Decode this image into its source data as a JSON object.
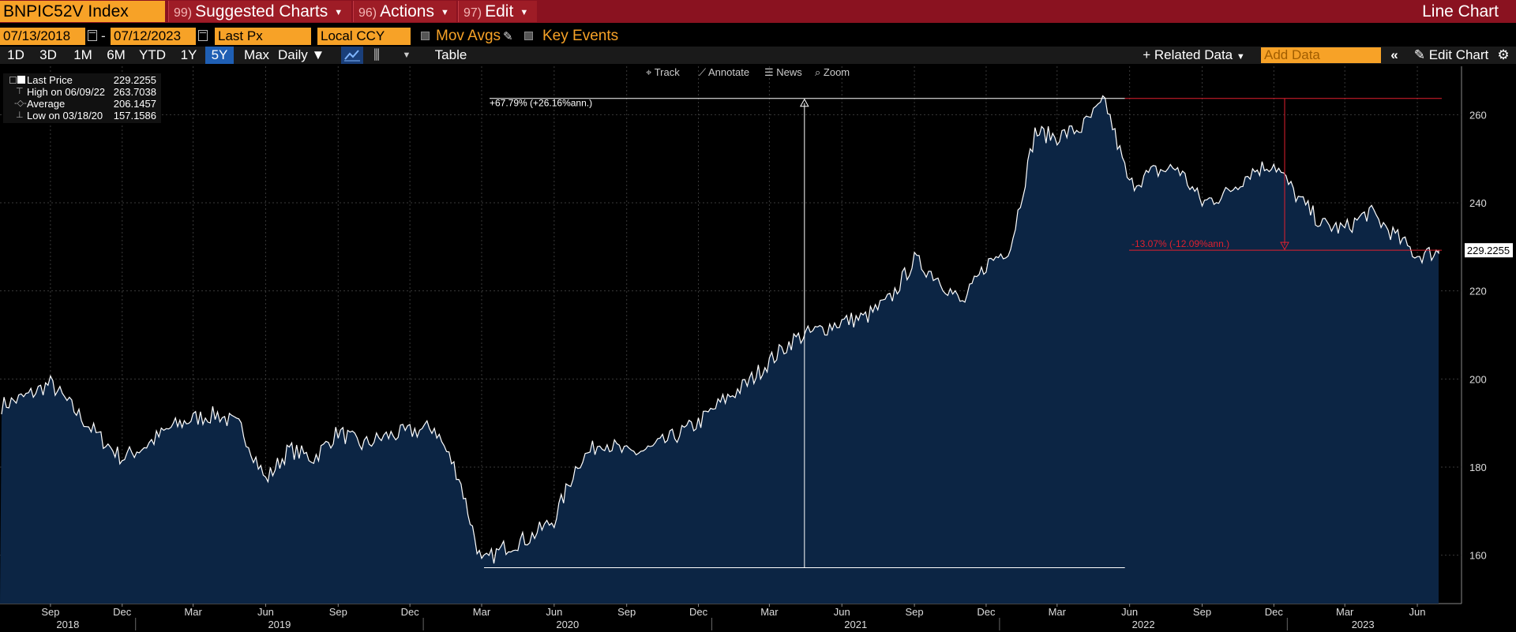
{
  "header": {
    "ticker": "BNPIC52V Index",
    "menus": [
      {
        "num": "99)",
        "label": "Suggested Charts"
      },
      {
        "num": "96)",
        "label": "Actions"
      },
      {
        "num": "97)",
        "label": "Edit"
      }
    ],
    "chart_type_label": "Line Chart"
  },
  "controls": {
    "start_date": "07/13/2018",
    "date_sep": "-",
    "end_date": "07/12/2023",
    "field": "Last Px",
    "currency": "Local CCY",
    "mov_avgs": "Mov Avgs",
    "key_events": "Key Events"
  },
  "toolbar": {
    "periods": [
      "1D",
      "3D",
      "1M",
      "6M",
      "YTD",
      "1Y",
      "5Y",
      "Max"
    ],
    "selected_period": "5Y",
    "frequency": "Daily",
    "table_label": "Table",
    "related_data": "Related Data",
    "add_data_placeholder": "Add Data",
    "edit_chart": "Edit Chart"
  },
  "annotation_tools": [
    "Track",
    "Annotate",
    "News",
    "Zoom"
  ],
  "legend": {
    "items": [
      {
        "label": "Last Price",
        "value": "229.2255"
      },
      {
        "label": "High on 06/09/22",
        "value": "263.7038"
      },
      {
        "label": "Average",
        "value": "206.1457"
      },
      {
        "label": "Low on 03/18/20",
        "value": "157.1586"
      }
    ]
  },
  "chart_data": {
    "type": "area",
    "series": [
      {
        "name": "Last Price"
      }
    ],
    "x": [
      "2018-07",
      "2018-08",
      "2018-09",
      "2018-10",
      "2018-11",
      "2018-12",
      "2019-01",
      "2019-02",
      "2019-03",
      "2019-04",
      "2019-05",
      "2019-06",
      "2019-07",
      "2019-08",
      "2019-09",
      "2019-10",
      "2019-11",
      "2019-12",
      "2020-01",
      "2020-02",
      "2020-03",
      "2020-04",
      "2020-05",
      "2020-06",
      "2020-07",
      "2020-08",
      "2020-09",
      "2020-10",
      "2020-11",
      "2020-12",
      "2021-01",
      "2021-02",
      "2021-03",
      "2021-04",
      "2021-05",
      "2021-06",
      "2021-07",
      "2021-08",
      "2021-09",
      "2021-10",
      "2021-11",
      "2021-12",
      "2022-01",
      "2022-02",
      "2022-03",
      "2022-04",
      "2022-05",
      "2022-06",
      "2022-07",
      "2022-08",
      "2022-09",
      "2022-10",
      "2022-11",
      "2022-12",
      "2023-01",
      "2023-02",
      "2023-03",
      "2023-04",
      "2023-05",
      "2023-06",
      "2023-07"
    ],
    "y": [
      194,
      196,
      199,
      193,
      187,
      182,
      185,
      189,
      191,
      192,
      189,
      177,
      184,
      182,
      188,
      185,
      187,
      188,
      189,
      178,
      158,
      162,
      164,
      168,
      181,
      186,
      183,
      184,
      187,
      190,
      195,
      199,
      204,
      209,
      211,
      213,
      214,
      218,
      227,
      223,
      217,
      226,
      230,
      256,
      255,
      257,
      263,
      244,
      247,
      248,
      240,
      242,
      247,
      249,
      241,
      235,
      234,
      238,
      233,
      228,
      229
    ],
    "last_value_label": "229.2255",
    "yticks": [
      160,
      180,
      200,
      220,
      240,
      260
    ],
    "ylim": [
      149,
      271
    ],
    "xticks": [
      "Sep",
      "Dec",
      "Mar",
      "Jun",
      "Sep",
      "Dec",
      "Mar",
      "Jun",
      "Sep",
      "Dec",
      "Mar",
      "Jun",
      "Sep",
      "Dec",
      "Mar",
      "Jun",
      "Sep",
      "Dec",
      "Mar",
      "Jun"
    ],
    "years": [
      "2018",
      "2019",
      "2020",
      "2021",
      "2022",
      "2023"
    ],
    "annotations": [
      {
        "label": "+67.79% (+26.16%ann.)",
        "from": "2020-03",
        "to": "2022-06",
        "color": "#ffffff"
      },
      {
        "label": "-13.07% (-12.09%ann.)",
        "from": "2022-06",
        "to": "2023-07",
        "color": "#e0202e"
      }
    ],
    "grid": true,
    "colors": {
      "line": "#ffffff",
      "fill": "#0c2544",
      "drop_annotation": "#e0202e"
    }
  }
}
